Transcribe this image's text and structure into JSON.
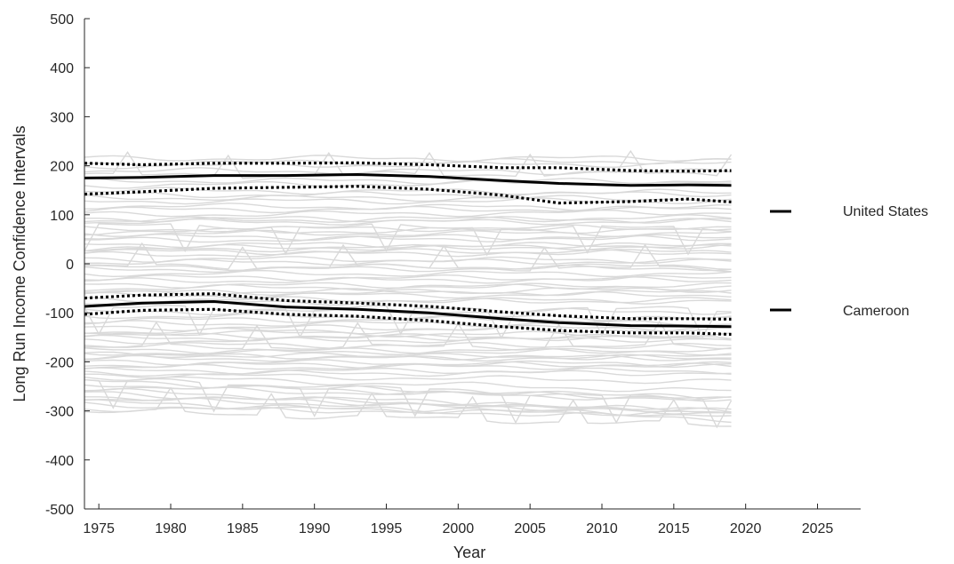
{
  "chart_data": {
    "type": "line",
    "xlabel": "Year",
    "ylabel": "Long Run Income Confidence Intervals",
    "xlim": [
      1974,
      2028
    ],
    "ylim": [
      -500,
      500
    ],
    "xticks": [
      1975,
      1980,
      1985,
      1990,
      1995,
      2000,
      2005,
      2010,
      2015,
      2020,
      2025
    ],
    "yticks": [
      -500,
      -400,
      -300,
      -200,
      -100,
      0,
      100,
      200,
      300,
      400,
      500
    ],
    "grid": false,
    "legend_position": "right",
    "colors": {
      "background_series": "#d9d9d9",
      "highlight": "#000000",
      "axis": "#262626"
    },
    "series": [
      {
        "name": "United States",
        "x": [
          1974,
          1978,
          1983,
          1988,
          1993,
          1998,
          2003,
          2007,
          2012,
          2016,
          2019
        ],
        "values": [
          175,
          176,
          180,
          180,
          182,
          178,
          170,
          164,
          160,
          161,
          160
        ],
        "lower": [
          142,
          147,
          154,
          156,
          158,
          152,
          140,
          124,
          127,
          132,
          126
        ],
        "upper": [
          205,
          202,
          205,
          205,
          206,
          202,
          196,
          196,
          190,
          189,
          190
        ]
      },
      {
        "name": "Cameroon",
        "x": [
          1974,
          1978,
          1983,
          1988,
          1993,
          1998,
          2003,
          2007,
          2012,
          2016,
          2019
        ],
        "values": [
          -87,
          -80,
          -77,
          -88,
          -93,
          -100,
          -112,
          -120,
          -126,
          -127,
          -128
        ],
        "lower": [
          -103,
          -95,
          -93,
          -103,
          -107,
          -116,
          -128,
          -136,
          -141,
          -141,
          -144
        ],
        "upper": [
          -70,
          -64,
          -61,
          -75,
          -80,
          -87,
          -98,
          -106,
          -112,
          -112,
          -113
        ]
      }
    ],
    "background_series": {
      "count": 80,
      "x_range": [
        1974,
        2019
      ],
      "levels": [
        215,
        205,
        190,
        180,
        170,
        160,
        150,
        140,
        128,
        118,
        110,
        100,
        92,
        85,
        78,
        70,
        62,
        55,
        48,
        40,
        32,
        25,
        18,
        10,
        3,
        -5,
        -12,
        -20,
        -28,
        -35,
        -42,
        -50,
        -58,
        -65,
        -72,
        -80,
        -90,
        -98,
        -106,
        -115,
        -122,
        -130,
        -138,
        -146,
        -152,
        -158,
        -165,
        -170,
        -176,
        -182,
        -188,
        -194,
        -200,
        -206,
        -212,
        -218,
        -224,
        -230,
        -236,
        -240,
        -246,
        -252,
        -258,
        -264,
        -270,
        -276,
        -282,
        -288,
        -295,
        -300,
        -60,
        -140,
        65,
        28,
        -185,
        -225,
        88,
        -8,
        135,
        200
      ],
      "drifts": [
        0,
        5,
        -3,
        4,
        -2,
        6,
        -5,
        3,
        0,
        -4,
        2,
        5,
        -3,
        1,
        -6,
        4,
        0,
        -2,
        5,
        -4,
        3,
        -1,
        6,
        -3,
        2,
        -5,
        4,
        0,
        -2,
        3,
        -6,
        5,
        -1,
        2,
        -4,
        6,
        -3,
        1,
        -5,
        3,
        0,
        -2,
        4,
        -6,
        2,
        5,
        -3,
        1,
        -4,
        6,
        -2,
        3,
        -5,
        0,
        4,
        -1,
        2,
        -30,
        -40,
        -35,
        -30,
        -25,
        -45,
        -40,
        -30,
        -25,
        -35,
        -20,
        -10,
        -30,
        8,
        -6,
        5,
        10,
        -8,
        -15,
        6,
        3,
        -2,
        4
      ]
    }
  }
}
